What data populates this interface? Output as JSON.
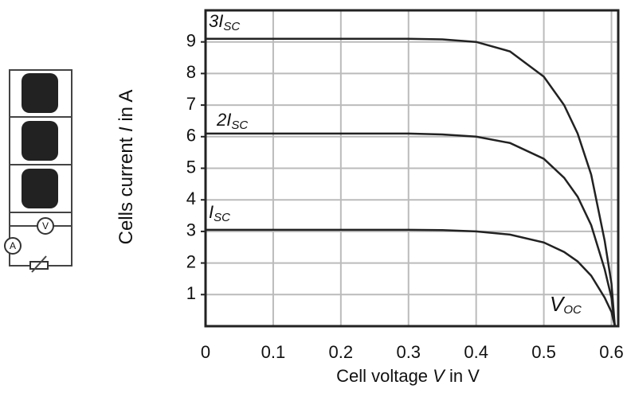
{
  "chart_data": {
    "type": "line",
    "x_label": [
      "Cell voltage ",
      "V",
      " in V"
    ],
    "y_label": [
      "Cells current ",
      "I",
      " in A"
    ],
    "annotations": [
      {
        "text": "3I",
        "sub": "SC"
      },
      {
        "text": "2I",
        "sub": "SC"
      },
      {
        "text": "I",
        "sub": "SC"
      },
      {
        "text": "V",
        "sub": "OC"
      }
    ],
    "circuit": {
      "voltmeter": "V",
      "ammeter": "A"
    },
    "x": [
      0,
      0.1,
      0.2,
      0.3,
      0.35,
      0.4,
      0.45,
      0.5,
      0.53,
      0.55,
      0.57,
      0.59,
      0.6,
      0.605
    ],
    "series": [
      {
        "color": "#222222",
        "values": [
          9.1,
          9.1,
          9.1,
          9.1,
          9.08,
          9.0,
          8.7,
          7.9,
          7.0,
          6.1,
          4.8,
          2.7,
          1.35,
          0
        ]
      },
      {
        "color": "#222222",
        "values": [
          6.1,
          6.1,
          6.1,
          6.1,
          6.07,
          6.0,
          5.8,
          5.3,
          4.7,
          4.1,
          3.2,
          1.8,
          0.9,
          0
        ]
      },
      {
        "color": "#222222",
        "values": [
          3.05,
          3.05,
          3.05,
          3.05,
          3.04,
          3.0,
          2.9,
          2.65,
          2.35,
          2.05,
          1.6,
          0.9,
          0.45,
          0
        ]
      }
    ],
    "xlim": [
      0,
      0.61
    ],
    "ylim": [
      0,
      10
    ],
    "xticks": [
      0,
      0.1,
      0.2,
      0.3,
      0.4,
      0.5,
      0.6
    ],
    "yticks": [
      1,
      2,
      3,
      4,
      5,
      6,
      7,
      8,
      9
    ],
    "grid": true
  }
}
